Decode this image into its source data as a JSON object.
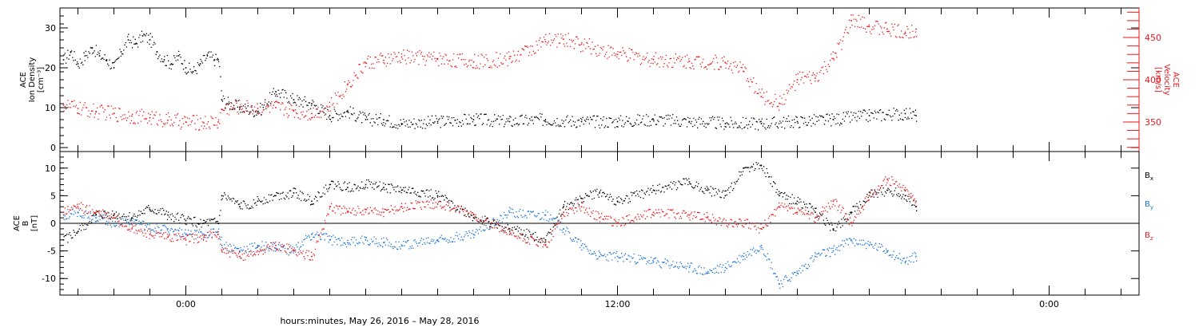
{
  "colors": {
    "black": "#000000",
    "red": "#e8191c",
    "blue": "#1a73d8"
  },
  "x_axis": {
    "title": "hours:minutes, May 26, 2016 – May 28, 2016",
    "unit": "hours from May 26, 2016 00:00",
    "range": [
      -3.5,
      26.5
    ],
    "ticks": [
      {
        "x": 0,
        "label": "0:00"
      },
      {
        "x": 12,
        "label": "12:00"
      },
      {
        "x": 24,
        "label": "0:00"
      }
    ],
    "minor_step": 1
  },
  "chart_data": [
    {
      "type": "scatter",
      "name": "top",
      "y_left": {
        "label_lines": [
          "ACE",
          "Ion Density",
          "[cm⁻³]"
        ],
        "range": [
          -1,
          35
        ],
        "ticks": [
          0,
          10,
          20,
          30
        ]
      },
      "y_right": {
        "label_lines": [
          "ACE",
          "Velocity",
          "[km/s]"
        ],
        "range": [
          315,
          485
        ],
        "ticks": [
          350,
          400,
          450
        ]
      },
      "series": [
        {
          "key": "density",
          "axis": "left",
          "color": "black",
          "x": [
            -3.4,
            -3.2,
            -3.0,
            -2.8,
            -2.6,
            -2.4,
            -2.2,
            -2.0,
            -1.8,
            -1.6,
            -1.4,
            -1.2,
            -1.0,
            -0.8,
            -0.6,
            -0.4,
            -0.2,
            0.0,
            0.2,
            0.4,
            0.6,
            0.8,
            0.9,
            1.0,
            1.2,
            1.5,
            2.0,
            2.5,
            3.0,
            3.5,
            4.0,
            4.5,
            5.0,
            5.5,
            6.0,
            7.0,
            8.0,
            9.0,
            10.0,
            11.0,
            12.0,
            13.0,
            14.0,
            15.0,
            16.0,
            17.0,
            18.0,
            19.0,
            20.0,
            20.3
          ],
          "y": [
            22,
            24,
            21,
            23,
            25,
            23,
            22,
            20,
            24,
            27,
            26,
            28,
            27,
            24,
            22,
            21,
            23,
            20,
            19,
            21,
            23,
            22,
            22,
            12,
            11,
            10,
            9,
            14,
            12,
            11,
            8,
            9,
            7,
            7,
            6,
            6.5,
            7,
            6.5,
            7,
            6.5,
            6.5,
            7,
            6.5,
            6,
            6,
            6.5,
            7,
            8,
            8.5,
            8
          ]
        },
        {
          "key": "velocity",
          "axis": "right",
          "color": "red",
          "x": [
            -3.4,
            -3.0,
            -2.5,
            -2.0,
            -1.5,
            -1.0,
            -0.5,
            0.0,
            0.5,
            0.9,
            1.0,
            1.5,
            2.0,
            2.5,
            3.0,
            3.5,
            4.0,
            4.5,
            5.0,
            5.5,
            6.0,
            7.0,
            8.0,
            9.0,
            10.0,
            10.5,
            11.0,
            12.0,
            13.0,
            14.0,
            15.0,
            15.5,
            16.0,
            16.5,
            17.0,
            17.5,
            18.0,
            18.5,
            19.0,
            19.5,
            20.0,
            20.3
          ],
          "y": [
            370,
            366,
            362,
            360,
            357,
            355,
            352,
            350,
            349,
            350,
            365,
            368,
            366,
            367,
            363,
            360,
            368,
            395,
            420,
            423,
            427,
            425,
            421,
            425,
            445,
            448,
            442,
            430,
            424,
            422,
            420,
            410,
            380,
            372,
            400,
            402,
            425,
            470,
            463,
            460,
            455,
            460
          ]
        }
      ]
    },
    {
      "type": "scatter",
      "name": "bottom",
      "y_left": {
        "label_lines": [
          "ACE",
          "B",
          "[nT]"
        ],
        "range": [
          -13,
          13
        ],
        "ticks": [
          -10,
          -5,
          0,
          5,
          10
        ]
      },
      "zero_line": true,
      "series": [
        {
          "key": "Bx",
          "name": "B",
          "sub": "x",
          "color": "black",
          "x": [
            -3.4,
            -3.0,
            -2.5,
            -2.0,
            -1.5,
            -1.0,
            -0.5,
            0.0,
            0.5,
            0.9,
            1.0,
            1.5,
            2.0,
            2.5,
            3.0,
            3.5,
            4.0,
            4.5,
            5.0,
            5.5,
            6.0,
            7.0,
            8.0,
            9.0,
            10.0,
            10.5,
            11.0,
            11.5,
            12.0,
            13.0,
            14.0,
            14.5,
            15.0,
            15.5,
            16.0,
            16.5,
            17.0,
            17.5,
            18.0,
            18.5,
            19.0,
            19.5,
            20.0,
            20.3
          ],
          "y": [
            -3,
            -1.5,
            1.5,
            1.5,
            1,
            2.5,
            1.5,
            0.5,
            0,
            0,
            5,
            3,
            4,
            5,
            5.5,
            4,
            7,
            6.5,
            7,
            6.5,
            6,
            5,
            1,
            -1,
            -3,
            3,
            4.5,
            5.5,
            4,
            6,
            7.5,
            6,
            5,
            10,
            10.5,
            5,
            4,
            2,
            -1,
            2,
            5,
            6,
            5,
            3
          ]
        },
        {
          "key": "By",
          "name": "B",
          "sub": "y",
          "color": "blue",
          "x": [
            -3.4,
            -3.0,
            -2.5,
            -2.0,
            -1.5,
            -1.0,
            -0.5,
            0.0,
            0.5,
            0.9,
            1.0,
            1.5,
            2.0,
            2.5,
            3.0,
            3.5,
            4.0,
            4.5,
            5.0,
            5.5,
            6.0,
            7.0,
            8.0,
            9.0,
            10.0,
            10.5,
            11.0,
            11.5,
            12.0,
            13.0,
            14.0,
            14.5,
            15.0,
            15.5,
            16.0,
            16.5,
            17.0,
            17.5,
            18.0,
            18.5,
            19.0,
            19.5,
            20.0,
            20.3
          ],
          "y": [
            1.5,
            2,
            1,
            0,
            0.5,
            -1,
            -1,
            -2,
            -2,
            -1.5,
            -4,
            -5,
            -4,
            -4.5,
            -5,
            -2,
            -3,
            -3.5,
            -3,
            -3.5,
            -4,
            -3,
            -2,
            2,
            1.5,
            -1,
            -4,
            -6,
            -6,
            -7,
            -8,
            -9,
            -8,
            -6,
            -4,
            -11,
            -9,
            -6,
            -5,
            -3,
            -4,
            -5,
            -7,
            -6
          ]
        },
        {
          "key": "Bz",
          "name": "B",
          "sub": "z",
          "color": "red",
          "x": [
            -3.4,
            -3.0,
            -2.5,
            -2.0,
            -1.5,
            -1.0,
            -0.5,
            0.0,
            0.5,
            0.9,
            1.0,
            1.5,
            2.0,
            2.5,
            3.0,
            3.5,
            4.0,
            4.5,
            5.0,
            5.5,
            6.0,
            7.0,
            8.0,
            9.0,
            10.0,
            10.5,
            11.0,
            11.5,
            12.0,
            13.0,
            14.0,
            14.5,
            15.0,
            15.5,
            16.0,
            16.5,
            17.0,
            17.5,
            18.0,
            18.5,
            19.0,
            19.5,
            20.0,
            20.3
          ],
          "y": [
            2,
            3,
            2,
            1,
            -1,
            -2,
            -2.5,
            -3,
            -2.5,
            -2,
            -5,
            -6,
            -5,
            -4,
            -5,
            -6,
            3,
            2,
            2.5,
            2,
            3,
            3.5,
            1.5,
            -2,
            -4,
            2,
            3,
            1,
            0,
            2,
            1.5,
            1,
            0,
            0,
            -1,
            3,
            2,
            1,
            4,
            0,
            5,
            8,
            6,
            4
          ]
        }
      ],
      "legend": "right"
    }
  ]
}
